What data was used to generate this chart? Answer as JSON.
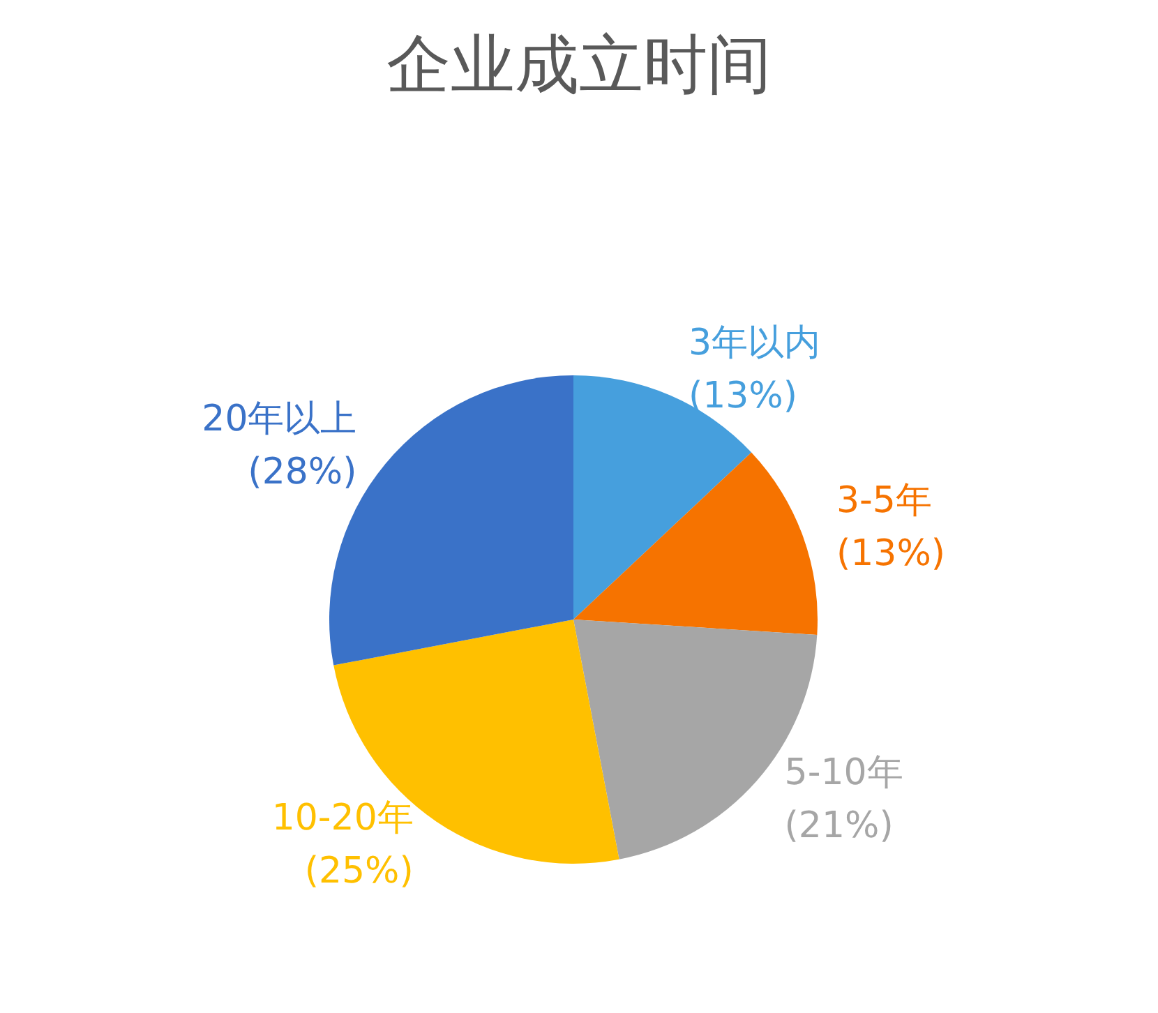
{
  "chart_data": {
    "type": "pie",
    "title": "企业成立时间",
    "categories": [
      "3年以内",
      "3-5年",
      "5-10年",
      "10-20年",
      "20年以上"
    ],
    "values": [
      13,
      13,
      21,
      25,
      28
    ],
    "colors": [
      "#469fdd",
      "#f67300",
      "#a6a6a6",
      "#ffc000",
      "#3a72c8"
    ],
    "value_labels": [
      "(13%)",
      "(13%)",
      "(21%)",
      "(25%)",
      "(28%)"
    ],
    "legend": false
  }
}
